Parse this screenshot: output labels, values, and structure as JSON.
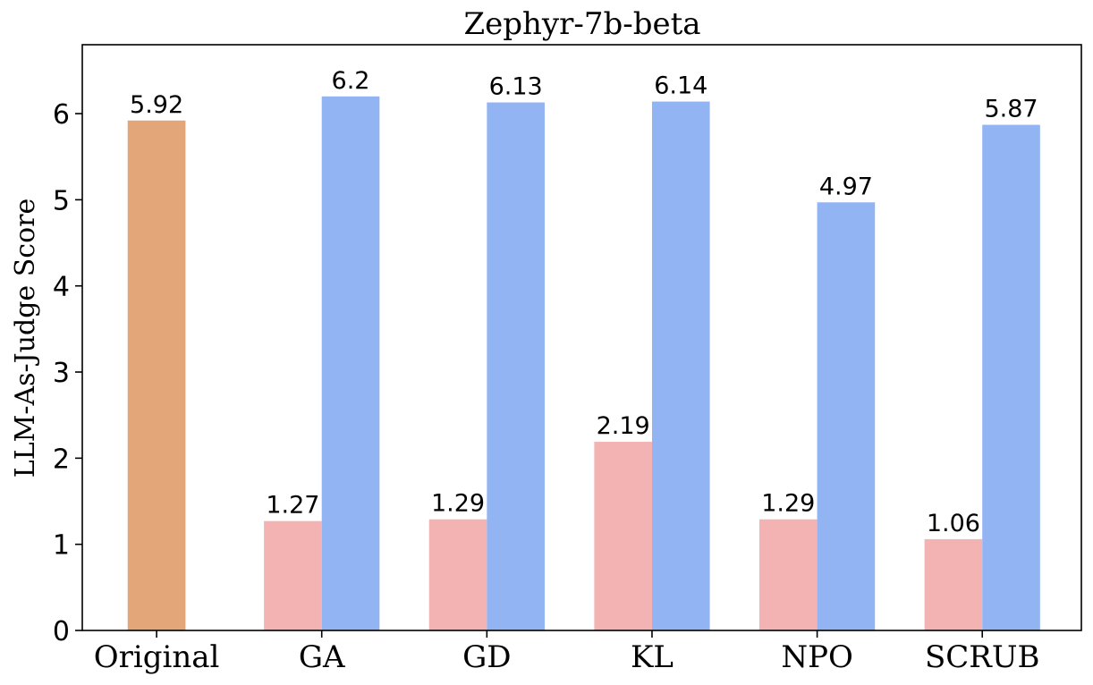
{
  "chart_data": {
    "type": "bar",
    "title": "Zephyr-7b-beta",
    "xlabel": "",
    "ylabel": "LLM-As-Judge Score",
    "ylim": [
      0,
      6.8
    ],
    "yticks": [
      0,
      1,
      2,
      3,
      4,
      5,
      6
    ],
    "grid": false,
    "legend": "none",
    "categories": [
      "Original",
      "GA",
      "GD",
      "KL",
      "NPO",
      "SCRUB"
    ],
    "original": {
      "value": 5.92,
      "label": "5.92",
      "color": "#e3a678"
    },
    "series": [
      {
        "values": [
          null,
          1.27,
          1.29,
          2.19,
          1.29,
          1.06
        ],
        "labels": [
          null,
          "1.27",
          "1.29",
          "2.19",
          "1.29",
          "1.06"
        ],
        "color": "#f4b3b3"
      },
      {
        "values": [
          null,
          6.2,
          6.13,
          6.14,
          4.97,
          5.87
        ],
        "labels": [
          null,
          "6.2",
          "6.13",
          "6.14",
          "4.97",
          "5.87"
        ],
        "color": "#93b4f2"
      }
    ]
  }
}
